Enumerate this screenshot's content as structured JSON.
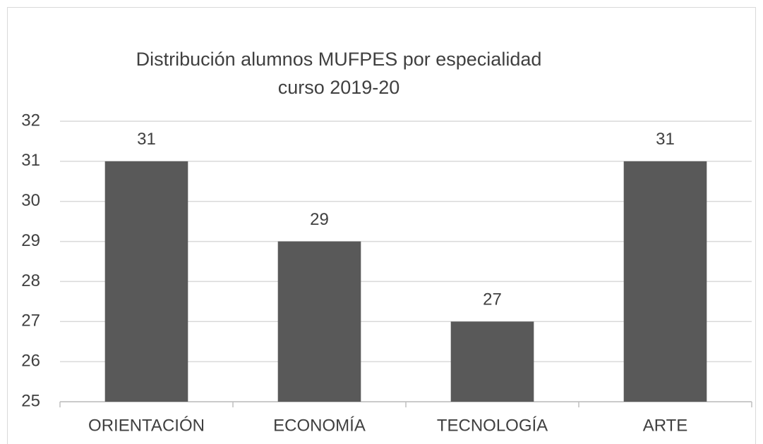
{
  "chart_data": {
    "type": "bar",
    "title": [
      "Distribución alumnos MUFPES por especialidad",
      "curso 2019-20"
    ],
    "categories": [
      "ORIENTACIÓN",
      "ECONOMÍA",
      "TECNOLOGÍA",
      "ARTE"
    ],
    "values": [
      31,
      29,
      27,
      31
    ],
    "color": "#595959",
    "ylim": [
      25,
      32
    ],
    "yticks": [
      25,
      26,
      27,
      28,
      29,
      30,
      31,
      32
    ],
    "grid": true
  }
}
